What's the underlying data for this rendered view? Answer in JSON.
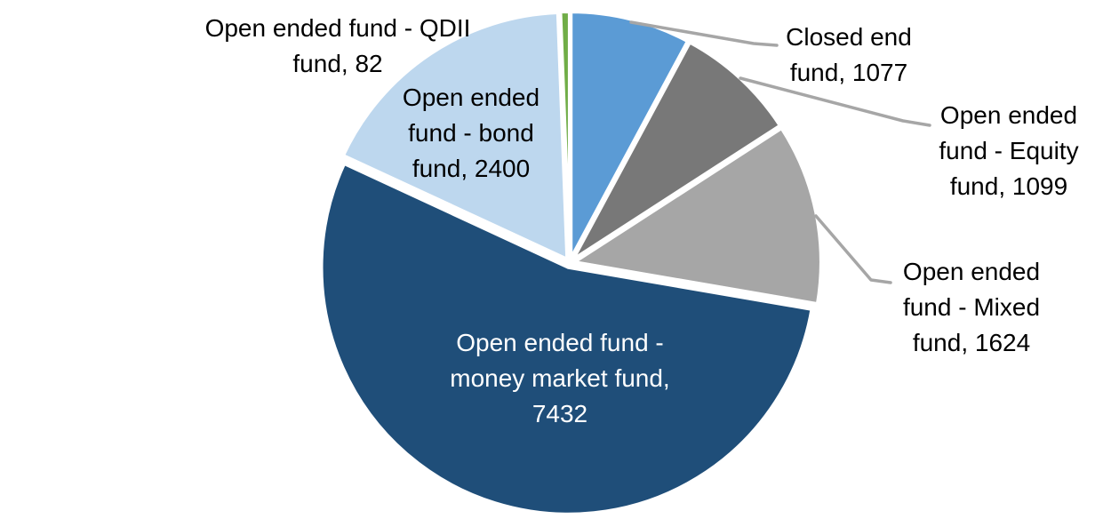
{
  "chart_data": {
    "type": "pie",
    "title": "",
    "legend": "none",
    "background": "#FFFFFF",
    "direction": "clockwise",
    "start_angle_deg": 0,
    "leader_line_color": "#A6A6A6",
    "label_text_color": "#000000",
    "slices": [
      {
        "label": "Closed end fund",
        "value": 1077,
        "color": "#5B9BD5",
        "display": "Closed end\nfund, 1077",
        "label_position": "outside-top-right",
        "leader_line": true
      },
      {
        "label": "Open ended fund - Equity fund",
        "value": 1099,
        "color": "#787878",
        "display": "Open ended\nfund - Equity\nfund, 1099",
        "label_position": "outside-right",
        "leader_line": true
      },
      {
        "label": "Open ended fund - Mixed fund",
        "value": 1624,
        "color": "#A6A6A6",
        "display": "Open ended\nfund - Mixed\nfund, 1624",
        "label_position": "outside-lower-right",
        "leader_line": true
      },
      {
        "label": "Open ended fund - money market fund",
        "value": 7432,
        "color": "#1F4E79",
        "display": "Open ended fund -\nmoney market fund,\n7432",
        "label_position": "inside",
        "text_color": "#FFFFFF",
        "leader_line": false
      },
      {
        "label": "Open ended fund - bond fund",
        "value": 2400,
        "color": "#BDD7EE",
        "display": "Open ended\nfund - bond\nfund, 2400",
        "label_position": "outside-upper-left",
        "leader_line": false
      },
      {
        "label": "Open ended fund - QDII fund",
        "value": 82,
        "color": "#70AD47",
        "display": "Open ended fund - QDII\nfund, 82",
        "label_position": "outside-top-left",
        "leader_line": false
      }
    ]
  }
}
